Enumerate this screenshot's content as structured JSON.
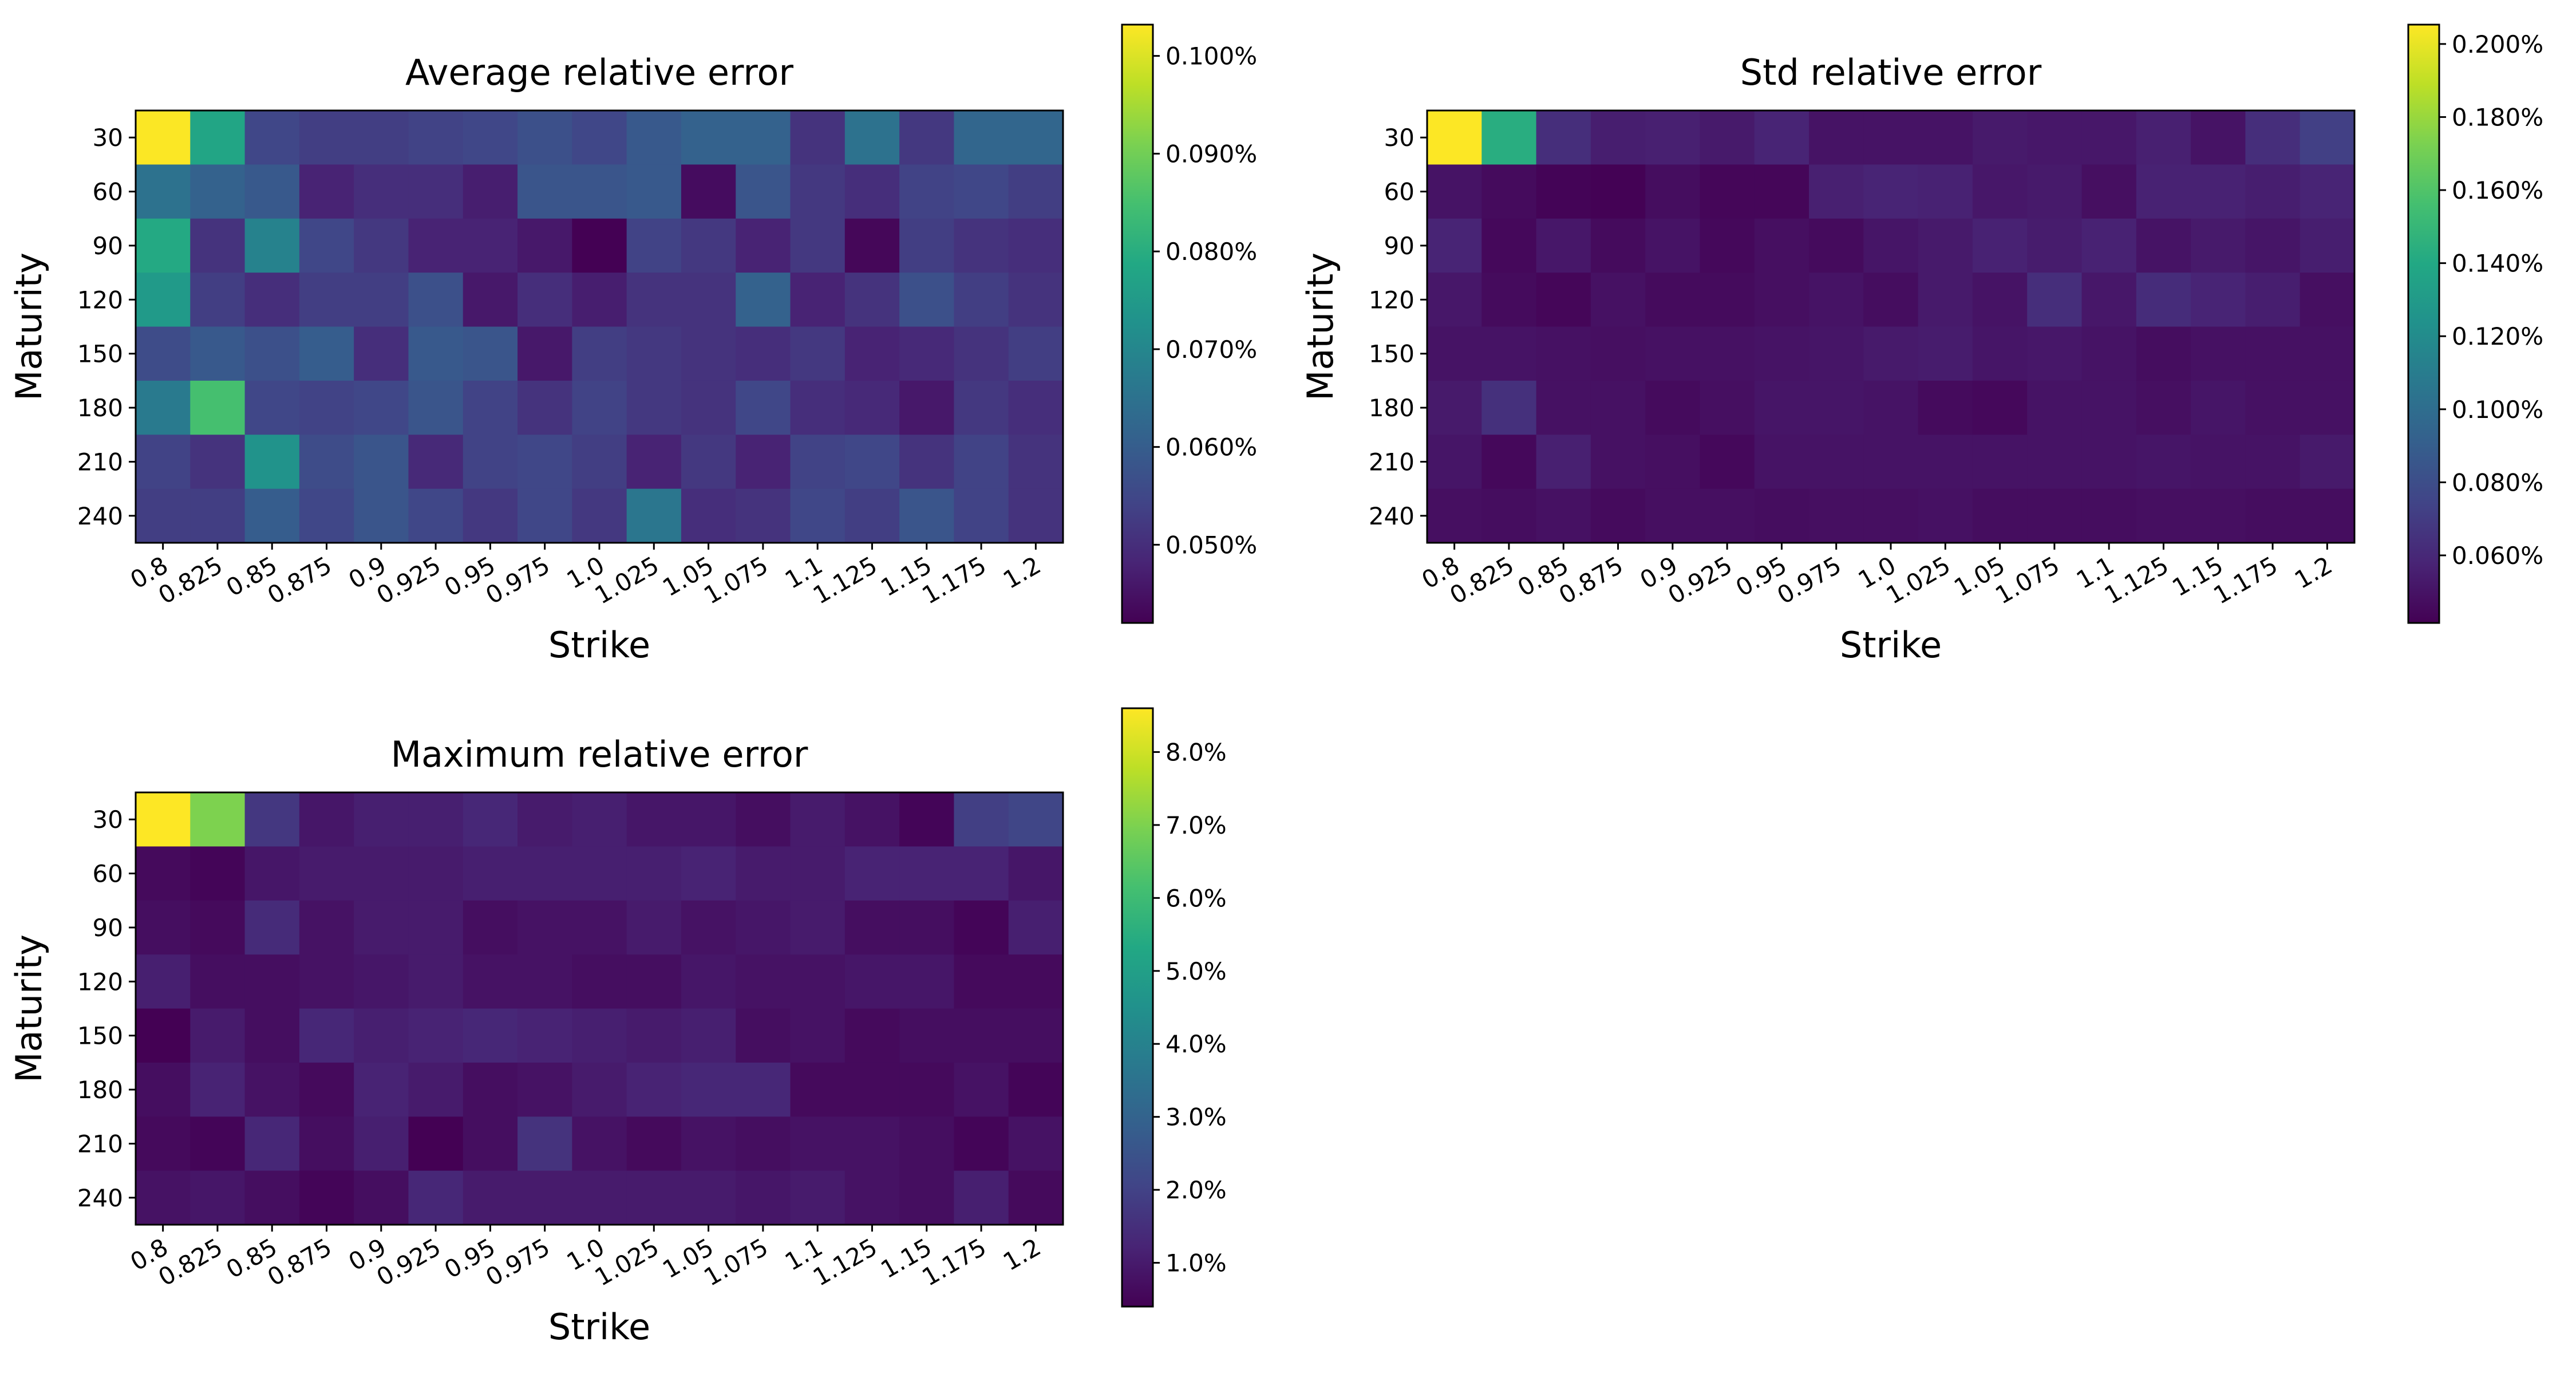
{
  "chart_data": [
    {
      "type": "heatmap",
      "title": "Average relative error",
      "xlabel": "Strike",
      "ylabel": "Maturity",
      "x_categories": [
        "0.8",
        "0.825",
        "0.85",
        "0.875",
        "0.9",
        "0.925",
        "0.95",
        "0.975",
        "1.0",
        "1.025",
        "1.05",
        "1.075",
        "1.1",
        "1.125",
        "1.15",
        "1.175",
        "1.2"
      ],
      "y_categories": [
        "30",
        "60",
        "90",
        "120",
        "150",
        "180",
        "210",
        "240"
      ],
      "colormap": "viridis",
      "vmin": 0.042,
      "vmax": 0.1032,
      "colorbar_ticks": [
        0.05,
        0.06,
        0.07,
        0.08,
        0.09,
        0.1
      ],
      "colorbar_labels": [
        "0.050%",
        "0.060%",
        "0.070%",
        "0.080%",
        "0.090%",
        "0.100%"
      ],
      "values": [
        [
          0.103,
          0.078,
          0.055,
          0.053,
          0.053,
          0.054,
          0.055,
          0.057,
          0.055,
          0.059,
          0.061,
          0.061,
          0.051,
          0.065,
          0.052,
          0.062,
          0.062
        ],
        [
          0.065,
          0.061,
          0.059,
          0.048,
          0.05,
          0.05,
          0.047,
          0.058,
          0.058,
          0.059,
          0.044,
          0.058,
          0.052,
          0.05,
          0.054,
          0.055,
          0.053
        ],
        [
          0.079,
          0.051,
          0.069,
          0.055,
          0.052,
          0.048,
          0.048,
          0.046,
          0.042,
          0.054,
          0.052,
          0.048,
          0.052,
          0.043,
          0.053,
          0.051,
          0.05
        ],
        [
          0.075,
          0.053,
          0.05,
          0.053,
          0.053,
          0.057,
          0.046,
          0.05,
          0.047,
          0.051,
          0.051,
          0.061,
          0.048,
          0.051,
          0.057,
          0.053,
          0.051
        ],
        [
          0.056,
          0.059,
          0.057,
          0.06,
          0.05,
          0.059,
          0.058,
          0.046,
          0.053,
          0.052,
          0.051,
          0.05,
          0.052,
          0.048,
          0.049,
          0.051,
          0.053
        ],
        [
          0.067,
          0.085,
          0.055,
          0.054,
          0.055,
          0.058,
          0.054,
          0.051,
          0.054,
          0.052,
          0.051,
          0.055,
          0.05,
          0.049,
          0.046,
          0.052,
          0.05
        ],
        [
          0.054,
          0.051,
          0.073,
          0.056,
          0.058,
          0.049,
          0.054,
          0.055,
          0.053,
          0.048,
          0.052,
          0.048,
          0.054,
          0.055,
          0.051,
          0.054,
          0.051
        ],
        [
          0.053,
          0.053,
          0.06,
          0.055,
          0.058,
          0.055,
          0.052,
          0.055,
          0.052,
          0.066,
          0.05,
          0.051,
          0.055,
          0.053,
          0.058,
          0.054,
          0.051
        ]
      ]
    },
    {
      "type": "heatmap",
      "title": "Std relative error",
      "xlabel": "Strike",
      "ylabel": "Maturity",
      "x_categories": [
        "0.8",
        "0.825",
        "0.85",
        "0.875",
        "0.9",
        "0.925",
        "0.95",
        "0.975",
        "1.0",
        "1.025",
        "1.05",
        "1.075",
        "1.1",
        "1.125",
        "1.15",
        "1.175",
        "1.2"
      ],
      "y_categories": [
        "30",
        "60",
        "90",
        "120",
        "150",
        "180",
        "210",
        "240"
      ],
      "colormap": "viridis",
      "vmin": 0.0415,
      "vmax": 0.2053,
      "colorbar_ticks": [
        0.06,
        0.08,
        0.1,
        0.12,
        0.14,
        0.16,
        0.18,
        0.2
      ],
      "colorbar_labels": [
        "0.060%",
        "0.080%",
        "0.100%",
        "0.120%",
        "0.140%",
        "0.160%",
        "0.180%",
        "0.200%"
      ],
      "values": [
        [
          0.205,
          0.143,
          0.063,
          0.055,
          0.056,
          0.053,
          0.058,
          0.05,
          0.05,
          0.05,
          0.053,
          0.052,
          0.052,
          0.056,
          0.05,
          0.063,
          0.072
        ],
        [
          0.05,
          0.046,
          0.043,
          0.042,
          0.047,
          0.044,
          0.044,
          0.056,
          0.058,
          0.057,
          0.052,
          0.053,
          0.048,
          0.057,
          0.057,
          0.055,
          0.058
        ],
        [
          0.058,
          0.045,
          0.052,
          0.046,
          0.05,
          0.045,
          0.048,
          0.046,
          0.051,
          0.053,
          0.057,
          0.054,
          0.057,
          0.05,
          0.053,
          0.051,
          0.055
        ],
        [
          0.052,
          0.046,
          0.044,
          0.049,
          0.046,
          0.046,
          0.048,
          0.05,
          0.047,
          0.053,
          0.05,
          0.063,
          0.052,
          0.062,
          0.058,
          0.055,
          0.048
        ],
        [
          0.05,
          0.05,
          0.049,
          0.048,
          0.049,
          0.049,
          0.05,
          0.051,
          0.053,
          0.054,
          0.051,
          0.052,
          0.05,
          0.047,
          0.049,
          0.049,
          0.049
        ],
        [
          0.053,
          0.064,
          0.049,
          0.049,
          0.046,
          0.048,
          0.051,
          0.051,
          0.05,
          0.046,
          0.045,
          0.05,
          0.05,
          0.048,
          0.051,
          0.049,
          0.049
        ],
        [
          0.051,
          0.045,
          0.056,
          0.049,
          0.048,
          0.045,
          0.05,
          0.05,
          0.05,
          0.05,
          0.05,
          0.05,
          0.05,
          0.051,
          0.05,
          0.05,
          0.053
        ],
        [
          0.048,
          0.047,
          0.049,
          0.046,
          0.048,
          0.048,
          0.047,
          0.048,
          0.048,
          0.049,
          0.047,
          0.047,
          0.047,
          0.048,
          0.048,
          0.047,
          0.047
        ]
      ]
    },
    {
      "type": "heatmap",
      "title": "Maximum relative error",
      "xlabel": "Strike",
      "ylabel": "Maturity",
      "x_categories": [
        "0.8",
        "0.825",
        "0.85",
        "0.875",
        "0.9",
        "0.925",
        "0.95",
        "0.975",
        "1.0",
        "1.025",
        "1.05",
        "1.075",
        "1.1",
        "1.125",
        "1.15",
        "1.175",
        "1.2"
      ],
      "y_categories": [
        "30",
        "60",
        "90",
        "120",
        "150",
        "180",
        "210",
        "240"
      ],
      "colormap": "viridis",
      "vmin": 0.4,
      "vmax": 8.6,
      "colorbar_ticks": [
        1,
        2,
        3,
        4,
        5,
        6,
        7,
        8
      ],
      "colorbar_labels": [
        "1.0%",
        "2.0%",
        "3.0%",
        "4.0%",
        "5.0%",
        "6.0%",
        "7.0%",
        "8.0%"
      ],
      "values": [
        [
          8.6,
          7.0,
          1.7,
          0.9,
          1.1,
          1.1,
          1.3,
          1.0,
          1.1,
          0.9,
          0.9,
          0.7,
          1.0,
          0.8,
          0.5,
          1.9,
          2.1
        ],
        [
          0.6,
          0.5,
          0.9,
          1.0,
          1.0,
          1.0,
          1.1,
          1.1,
          1.1,
          1.1,
          1.2,
          1.0,
          1.0,
          1.2,
          1.2,
          1.2,
          0.9
        ],
        [
          0.7,
          0.6,
          1.4,
          0.8,
          1.0,
          1.0,
          0.7,
          0.8,
          0.8,
          1.0,
          0.8,
          0.9,
          1.0,
          0.7,
          0.7,
          0.5,
          1.1
        ],
        [
          1.1,
          0.7,
          0.7,
          0.8,
          0.9,
          1.0,
          0.8,
          0.8,
          0.7,
          0.7,
          0.9,
          0.8,
          0.8,
          0.9,
          0.9,
          0.6,
          0.6
        ],
        [
          0.4,
          1.0,
          0.7,
          1.3,
          1.1,
          1.2,
          1.3,
          1.2,
          1.1,
          1.0,
          1.1,
          0.7,
          0.8,
          0.6,
          0.7,
          0.7,
          0.7
        ],
        [
          0.7,
          1.2,
          0.8,
          0.6,
          1.2,
          1.0,
          0.7,
          0.8,
          1.0,
          1.2,
          1.3,
          1.3,
          0.6,
          0.6,
          0.6,
          0.8,
          0.5
        ],
        [
          0.6,
          0.5,
          1.3,
          0.7,
          1.1,
          0.4,
          0.7,
          1.6,
          0.8,
          0.6,
          0.8,
          0.7,
          0.8,
          0.8,
          0.7,
          0.5,
          0.8
        ],
        [
          0.8,
          0.9,
          0.7,
          0.5,
          0.7,
          1.3,
          1.0,
          1.0,
          1.0,
          1.0,
          1.0,
          0.9,
          1.0,
          0.8,
          0.7,
          1.1,
          0.6
        ]
      ]
    }
  ]
}
